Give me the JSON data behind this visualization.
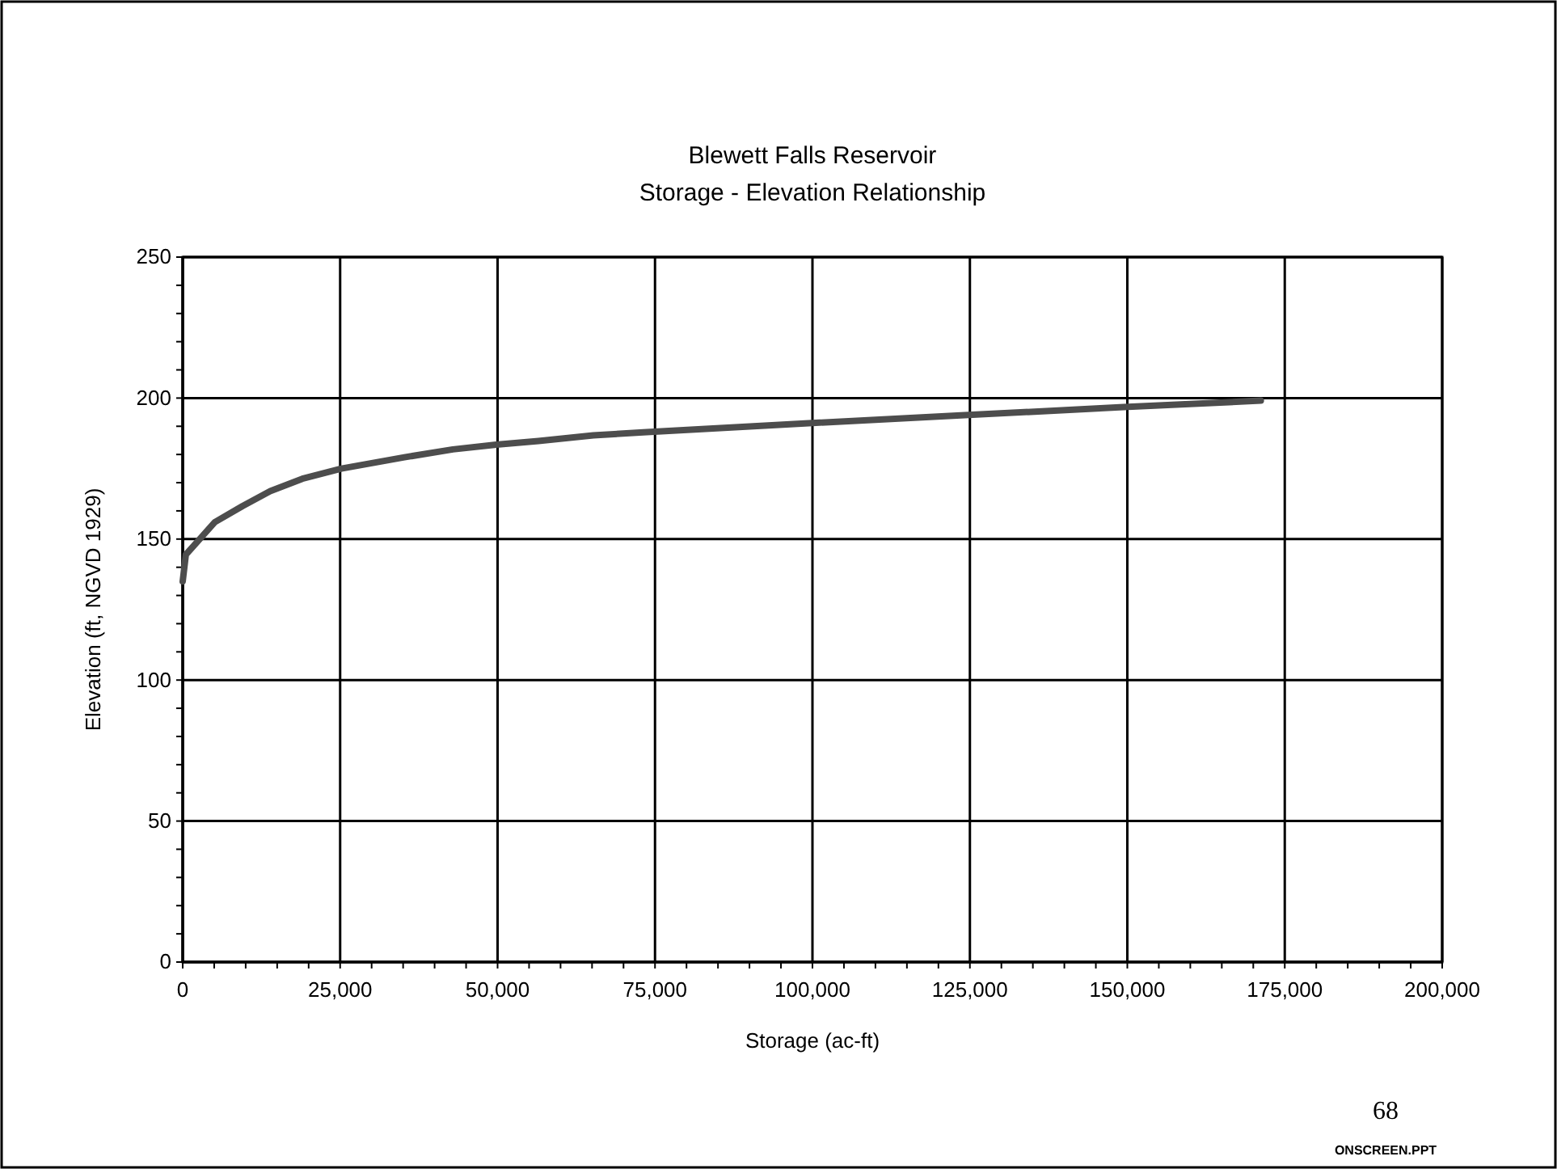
{
  "chart_data": {
    "type": "line",
    "title": "Blewett Falls Reservoir",
    "subtitle": "Storage - Elevation Relationship",
    "xlabel": "Storage (ac-ft)",
    "ylabel": "Elevation (ft, NGVD 1929)",
    "x": [
      0,
      500,
      3100,
      5100,
      9500,
      13900,
      19000,
      25200,
      35200,
      42900,
      49800,
      56500,
      65200,
      73700,
      99400,
      124800,
      149400,
      171200
    ],
    "series": [
      {
        "color": "#4d4d4d",
        "values": [
          135,
          144.5,
          151,
          156,
          161.7,
          167,
          171.4,
          175,
          179,
          181.8,
          183.5,
          184.8,
          186.8,
          187.9,
          191.1,
          194,
          196.8,
          199.1
        ]
      }
    ],
    "xlim": [
      0,
      200000
    ],
    "ylim": [
      0,
      250
    ],
    "xticks": [
      {
        "value": 0,
        "label": "0"
      },
      {
        "value": 5000,
        "label": null
      },
      {
        "value": 10000,
        "label": null
      },
      {
        "value": 15000,
        "label": null
      },
      {
        "value": 20000,
        "label": null
      },
      {
        "value": 25000,
        "label": "25,000"
      },
      {
        "value": 30000,
        "label": null
      },
      {
        "value": 35000,
        "label": null
      },
      {
        "value": 40000,
        "label": null
      },
      {
        "value": 45000,
        "label": null
      },
      {
        "value": 50000,
        "label": "50,000"
      },
      {
        "value": 55000,
        "label": null
      },
      {
        "value": 60000,
        "label": null
      },
      {
        "value": 65000,
        "label": null
      },
      {
        "value": 70000,
        "label": null
      },
      {
        "value": 75000,
        "label": "75,000"
      },
      {
        "value": 80000,
        "label": null
      },
      {
        "value": 85000,
        "label": null
      },
      {
        "value": 90000,
        "label": null
      },
      {
        "value": 95000,
        "label": null
      },
      {
        "value": 100000,
        "label": "100,000"
      },
      {
        "value": 105000,
        "label": null
      },
      {
        "value": 110000,
        "label": null
      },
      {
        "value": 115000,
        "label": null
      },
      {
        "value": 120000,
        "label": null
      },
      {
        "value": 125000,
        "label": "125,000"
      },
      {
        "value": 130000,
        "label": null
      },
      {
        "value": 135000,
        "label": null
      },
      {
        "value": 140000,
        "label": null
      },
      {
        "value": 145000,
        "label": null
      },
      {
        "value": 150000,
        "label": "150,000"
      },
      {
        "value": 155000,
        "label": null
      },
      {
        "value": 160000,
        "label": null
      },
      {
        "value": 165000,
        "label": null
      },
      {
        "value": 170000,
        "label": null
      },
      {
        "value": 175000,
        "label": "175,000"
      },
      {
        "value": 180000,
        "label": null
      },
      {
        "value": 185000,
        "label": null
      },
      {
        "value": 190000,
        "label": null
      },
      {
        "value": 195000,
        "label": null
      },
      {
        "value": 200000,
        "label": "200,000"
      }
    ],
    "yticks": [
      0,
      {
        "value": 10,
        "label": null
      },
      {
        "value": 20,
        "label": null
      },
      {
        "value": 30,
        "label": null
      },
      {
        "value": 40,
        "label": null
      },
      50,
      {
        "value": 60,
        "label": null
      },
      {
        "value": 70,
        "label": null
      },
      {
        "value": 80,
        "label": null
      },
      {
        "value": 90,
        "label": null
      },
      100,
      {
        "value": 110,
        "label": null
      },
      {
        "value": 120,
        "label": null
      },
      {
        "value": 130,
        "label": null
      },
      {
        "value": 140,
        "label": null
      },
      150,
      {
        "value": 160,
        "label": null
      },
      {
        "value": 170,
        "label": null
      },
      {
        "value": 180,
        "label": null
      },
      {
        "value": 190,
        "label": null
      },
      200,
      {
        "value": 210,
        "label": null
      },
      {
        "value": 220,
        "label": null
      },
      {
        "value": 230,
        "label": null
      },
      {
        "value": 240,
        "label": null
      },
      250
    ],
    "grid": true,
    "marker": "none",
    "line_style": "solid",
    "annotations": [
      "68",
      "ONSCREEN.PPT"
    ]
  }
}
